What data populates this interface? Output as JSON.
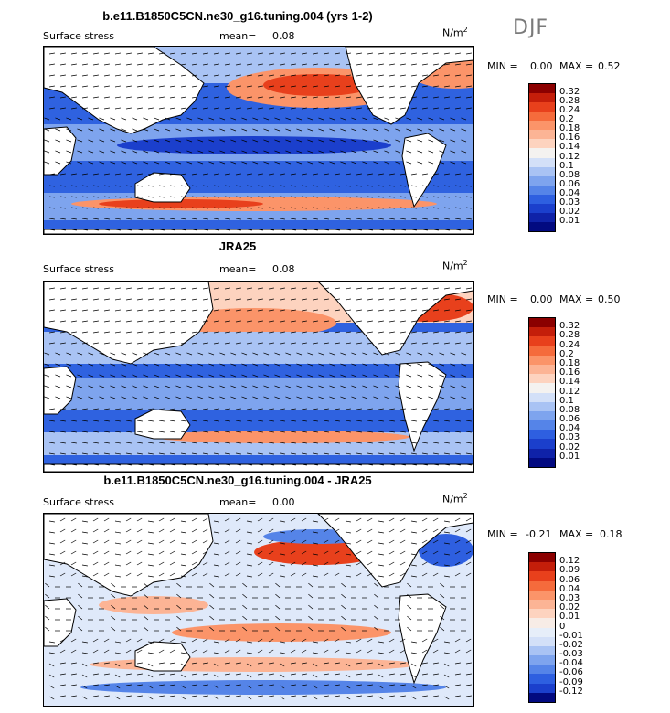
{
  "season": "DJF",
  "panels": [
    {
      "title": "b.e11.B1850C5CN.ne30_g16.tuning.004 (yrs 1-2)",
      "variable": "Surface stress",
      "mean_label": "mean=",
      "mean_value": "0.08",
      "unit": "N/m",
      "unit_exp": "2",
      "min_label": "MIN =",
      "min_value": "0.00",
      "max_label": "MAX =",
      "max_value": "0.52",
      "levels": [
        "0.32",
        "0.28",
        "0.24",
        "0.2",
        "0.18",
        "0.16",
        "0.14",
        "0.12",
        "0.1",
        "0.08",
        "0.06",
        "0.04",
        "0.03",
        "0.02",
        "0.01"
      ],
      "colors": [
        "#8b0000",
        "#c41e0a",
        "#e8401c",
        "#f56b3c",
        "#fb9469",
        "#fcb495",
        "#fdd3bf",
        "#f4f2f0",
        "#d3e0f8",
        "#a9c3f4",
        "#7ea4ee",
        "#5584e8",
        "#2e5fe0",
        "#1b3fcc",
        "#0f22a8",
        "#020a80"
      ]
    },
    {
      "title": "JRA25",
      "variable": "Surface stress",
      "mean_label": "mean=",
      "mean_value": "0.08",
      "unit": "N/m",
      "unit_exp": "2",
      "min_label": "MIN =",
      "min_value": "0.00",
      "max_label": "MAX =",
      "max_value": "0.50",
      "levels": [
        "0.32",
        "0.28",
        "0.24",
        "0.2",
        "0.18",
        "0.16",
        "0.14",
        "0.12",
        "0.1",
        "0.08",
        "0.06",
        "0.04",
        "0.03",
        "0.02",
        "0.01"
      ],
      "colors": [
        "#8b0000",
        "#c41e0a",
        "#e8401c",
        "#f56b3c",
        "#fb9469",
        "#fcb495",
        "#fdd3bf",
        "#f4f2f0",
        "#d3e0f8",
        "#a9c3f4",
        "#7ea4ee",
        "#5584e8",
        "#2e5fe0",
        "#1b3fcc",
        "#0f22a8",
        "#020a80"
      ]
    },
    {
      "title": "b.e11.B1850C5CN.ne30_g16.tuning.004 - JRA25",
      "variable": "Surface stress",
      "mean_label": "mean=",
      "mean_value": "0.00",
      "unit": "N/m",
      "unit_exp": "2",
      "min_label": "MIN =",
      "min_value": "-0.21",
      "max_label": "MAX =",
      "max_value": "0.18",
      "levels": [
        "0.12",
        "0.09",
        "0.06",
        "0.04",
        "0.03",
        "0.02",
        "0.01",
        "0",
        "-0.01",
        "-0.02",
        "-0.03",
        "-0.04",
        "-0.06",
        "-0.09",
        "-0.12"
      ],
      "colors": [
        "#8b0000",
        "#c41e0a",
        "#e8401c",
        "#f56b3c",
        "#fb9469",
        "#fcb495",
        "#fdd3bf",
        "#f7ece6",
        "#e6eef9",
        "#d3e0f8",
        "#a9c3f4",
        "#7ea4ee",
        "#5584e8",
        "#2e5fe0",
        "#1b3fcc",
        "#020a80"
      ]
    }
  ],
  "chart_data": [
    {
      "type": "heatmap",
      "title": "b.e11.B1850C5CN.ne30_g16.tuning.004 (yrs 1-2)",
      "variable": "Surface stress",
      "units": "N/m2",
      "season": "DJF",
      "mean": 0.08,
      "min": 0.0,
      "max": 0.52,
      "contour_levels": [
        0.01,
        0.02,
        0.03,
        0.04,
        0.06,
        0.08,
        0.1,
        0.12,
        0.14,
        0.16,
        0.18,
        0.2,
        0.24,
        0.28,
        0.32
      ],
      "overlay": "wind stress vectors"
    },
    {
      "type": "heatmap",
      "title": "JRA25",
      "variable": "Surface stress",
      "units": "N/m2",
      "season": "DJF",
      "mean": 0.08,
      "min": 0.0,
      "max": 0.5,
      "contour_levels": [
        0.01,
        0.02,
        0.03,
        0.04,
        0.06,
        0.08,
        0.1,
        0.12,
        0.14,
        0.16,
        0.18,
        0.2,
        0.24,
        0.28,
        0.32
      ],
      "overlay": "wind stress vectors"
    },
    {
      "type": "heatmap",
      "title": "b.e11.B1850C5CN.ne30_g16.tuning.004 - JRA25",
      "variable": "Surface stress",
      "units": "N/m2",
      "season": "DJF",
      "mean": 0.0,
      "min": -0.21,
      "max": 0.18,
      "contour_levels": [
        -0.12,
        -0.09,
        -0.06,
        -0.04,
        -0.03,
        -0.02,
        -0.01,
        0,
        0.01,
        0.02,
        0.03,
        0.04,
        0.06,
        0.09,
        0.12
      ],
      "overlay": "wind stress difference vectors"
    }
  ]
}
